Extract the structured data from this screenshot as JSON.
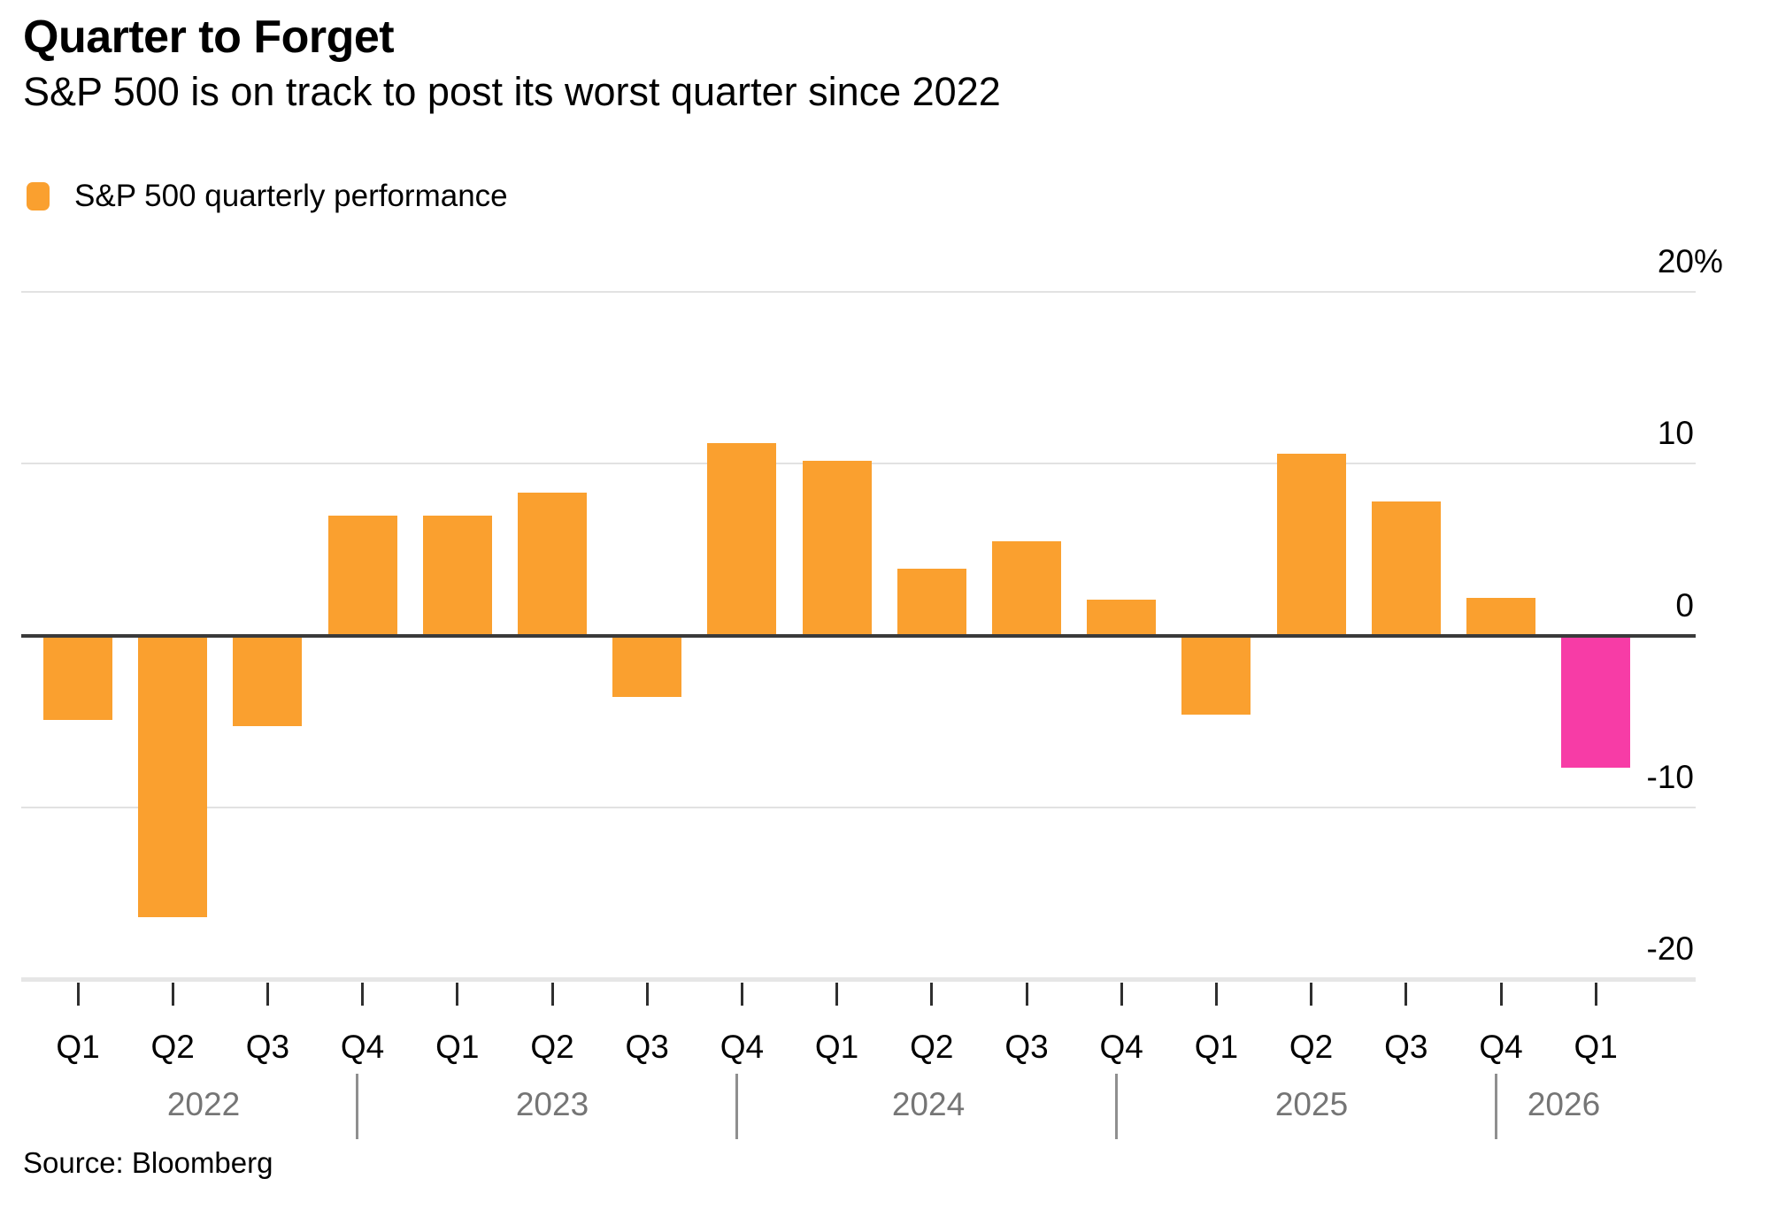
{
  "header": {
    "title": "Quarter to Forget",
    "subtitle": "S&P 500 is on track to post its worst quarter since 2022"
  },
  "legend": {
    "label": "S&P 500 quarterly performance",
    "marker": "orange-rounded-square"
  },
  "source": "Source: Bloomberg",
  "colors": {
    "bar": "#FAA02F",
    "highlight": "#F73CA6",
    "gridline": "#E2E2E2",
    "baseline": "#E6E6E6",
    "zero_line": "#3A3A3A",
    "tick": "#2F2F2F",
    "quarter_label": "#000000",
    "year_label": "#757575",
    "separator": "#8F8F8F"
  },
  "chart_data": {
    "type": "bar",
    "title": "Quarter to Forget",
    "subtitle": "S&P 500 is on track to post its worst quarter since 2022",
    "unit": "%",
    "grid": true,
    "legend_entries": [
      "S&P 500 quarterly performance"
    ],
    "legend_position": "top-left",
    "ylim": [
      -20,
      20
    ],
    "y_axis": {
      "tick_values": [
        20,
        10,
        0,
        -10,
        -20
      ],
      "tick_labels": [
        "20%",
        "10",
        "0",
        "-10",
        "-20"
      ],
      "side": "right"
    },
    "categories": [
      "Q1",
      "Q2",
      "Q3",
      "Q4",
      "Q1",
      "Q2",
      "Q3",
      "Q4",
      "Q1",
      "Q2",
      "Q3",
      "Q4",
      "Q1",
      "Q2",
      "Q3",
      "Q4",
      "Q1"
    ],
    "year_labels": [
      "2022",
      "2023",
      "2024",
      "2025",
      "2026"
    ],
    "series": [
      {
        "name": "S&P 500 quarterly performance",
        "values": [
          -4.9,
          -16.4,
          -5.3,
          7.0,
          7.0,
          8.3,
          -3.6,
          11.2,
          10.2,
          3.9,
          5.5,
          2.1,
          -4.6,
          10.6,
          7.8,
          2.2,
          -7.7
        ]
      }
    ],
    "highlight_index": 16,
    "highlight_label": "Q1 2026",
    "highlight_color_name": "pink"
  }
}
